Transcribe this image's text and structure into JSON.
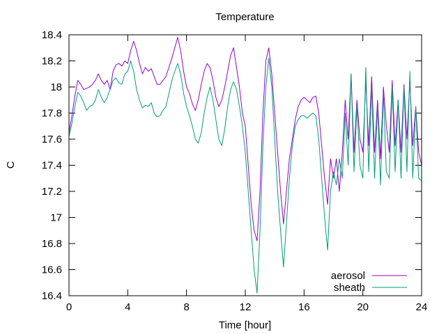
{
  "chart_data": {
    "type": "line",
    "title": "Temperature",
    "xlabel": "Time [hour]",
    "ylabel": "C",
    "xlim": [
      0,
      24
    ],
    "ylim": [
      16.4,
      18.4
    ],
    "xticks": [
      0,
      4,
      8,
      12,
      16,
      20,
      24
    ],
    "yticks": [
      16.4,
      16.6,
      16.8,
      17,
      17.2,
      17.4,
      17.6,
      17.8,
      18,
      18.2,
      18.4
    ],
    "xtick_labels": [
      "0",
      "4",
      "8",
      "12",
      "16",
      "20",
      "24"
    ],
    "ytick_labels": [
      "16.4",
      "16.6",
      "16.8",
      "17",
      "17.2",
      "17.4",
      "17.6",
      "17.8",
      "18",
      "18.2",
      "18.4"
    ],
    "grid": false,
    "legend_position": "bottom-right",
    "series": [
      {
        "name": "aerosol",
        "color": "#9400d3",
        "x": [
          0,
          0.2,
          0.4,
          0.6,
          0.8,
          1.0,
          1.2,
          1.4,
          1.6,
          1.8,
          2.0,
          2.2,
          2.4,
          2.6,
          2.8,
          3.0,
          3.2,
          3.4,
          3.6,
          3.8,
          4.0,
          4.2,
          4.4,
          4.6,
          4.8,
          5.0,
          5.2,
          5.4,
          5.6,
          5.8,
          6.0,
          6.2,
          6.4,
          6.6,
          6.8,
          7.0,
          7.2,
          7.4,
          7.6,
          7.8,
          8.0,
          8.2,
          8.4,
          8.6,
          8.8,
          9.0,
          9.2,
          9.4,
          9.6,
          9.8,
          10.0,
          10.2,
          10.4,
          10.6,
          10.8,
          11.0,
          11.2,
          11.4,
          11.6,
          11.8,
          12.0,
          12.2,
          12.4,
          12.6,
          12.8,
          13.0,
          13.2,
          13.4,
          13.6,
          13.8,
          14.0,
          14.2,
          14.4,
          14.6,
          14.8,
          15.0,
          15.2,
          15.4,
          15.6,
          15.8,
          16.0,
          16.2,
          16.4,
          16.6,
          16.8,
          17.0,
          17.2,
          17.4,
          17.6,
          17.8,
          18.0,
          18.2,
          18.4,
          18.6,
          18.8,
          19.0,
          19.2,
          19.4,
          19.6,
          19.8,
          20.0,
          20.2,
          20.4,
          20.6,
          20.8,
          21.0,
          21.2,
          21.4,
          21.6,
          21.8,
          22.0,
          22.2,
          22.4,
          22.6,
          22.8,
          23.0,
          23.2,
          23.4,
          23.6,
          23.8,
          24.0
        ],
        "values": [
          17.65,
          17.78,
          17.93,
          18.05,
          18.02,
          17.98,
          17.99,
          18.0,
          18.02,
          18.05,
          18.1,
          18.05,
          18.02,
          18.05,
          17.98,
          18.12,
          18.17,
          18.18,
          18.16,
          18.2,
          18.18,
          18.28,
          18.35,
          18.28,
          18.18,
          18.1,
          18.15,
          18.12,
          18.14,
          18.08,
          18.02,
          18.02,
          18.05,
          18.08,
          18.15,
          18.22,
          18.3,
          18.38,
          18.28,
          18.12,
          18.0,
          17.95,
          17.87,
          17.82,
          17.9,
          18.02,
          18.12,
          18.18,
          18.15,
          18.05,
          17.92,
          17.85,
          17.9,
          18.0,
          18.12,
          18.24,
          18.3,
          18.15,
          18.0,
          17.8,
          17.7,
          17.4,
          17.1,
          16.9,
          16.82,
          17.2,
          17.8,
          18.2,
          18.3,
          18.1,
          17.8,
          17.5,
          17.2,
          16.95,
          17.2,
          17.45,
          17.6,
          17.75,
          17.85,
          17.9,
          17.92,
          17.9,
          17.88,
          17.92,
          17.93,
          17.8,
          17.55,
          17.3,
          17.1,
          17.45,
          17.3,
          17.45,
          17.2,
          17.5,
          17.9,
          17.6,
          18.1,
          17.5,
          17.9,
          17.6,
          17.5,
          18.05,
          17.55,
          18.08,
          17.5,
          17.9,
          17.45,
          18.0,
          17.7,
          17.5,
          18.05,
          17.55,
          17.9,
          17.5,
          18.02,
          17.6,
          18.05,
          17.55,
          17.85,
          17.5,
          17.4
        ]
      },
      {
        "name": "sheath",
        "color": "#009e73",
        "x": [
          0,
          0.2,
          0.4,
          0.6,
          0.8,
          1.0,
          1.2,
          1.4,
          1.6,
          1.8,
          2.0,
          2.2,
          2.4,
          2.6,
          2.8,
          3.0,
          3.2,
          3.4,
          3.6,
          3.8,
          4.0,
          4.2,
          4.4,
          4.6,
          4.8,
          5.0,
          5.2,
          5.4,
          5.6,
          5.8,
          6.0,
          6.2,
          6.4,
          6.6,
          6.8,
          7.0,
          7.2,
          7.4,
          7.6,
          7.8,
          8.0,
          8.2,
          8.4,
          8.6,
          8.8,
          9.0,
          9.2,
          9.4,
          9.6,
          9.8,
          10.0,
          10.2,
          10.4,
          10.6,
          10.8,
          11.0,
          11.2,
          11.4,
          11.6,
          11.8,
          12.0,
          12.2,
          12.4,
          12.6,
          12.8,
          13.0,
          13.2,
          13.4,
          13.6,
          13.8,
          14.0,
          14.2,
          14.4,
          14.6,
          14.8,
          15.0,
          15.2,
          15.4,
          15.6,
          15.8,
          16.0,
          16.2,
          16.4,
          16.6,
          16.8,
          17.0,
          17.2,
          17.4,
          17.6,
          17.8,
          18.0,
          18.2,
          18.4,
          18.6,
          18.8,
          19.0,
          19.2,
          19.4,
          19.6,
          19.8,
          20.0,
          20.2,
          20.4,
          20.6,
          20.8,
          21.0,
          21.2,
          21.4,
          21.6,
          21.8,
          22.0,
          22.2,
          22.4,
          22.6,
          22.8,
          23.0,
          23.2,
          23.4,
          23.6,
          23.8,
          24.0
        ],
        "values": [
          17.62,
          17.72,
          17.85,
          17.96,
          17.93,
          17.88,
          17.82,
          17.85,
          17.86,
          17.9,
          17.98,
          17.92,
          17.88,
          17.92,
          17.98,
          18.05,
          18.07,
          18.03,
          18.02,
          18.1,
          18.12,
          18.2,
          18.12,
          17.98,
          17.9,
          17.84,
          17.86,
          17.85,
          17.88,
          17.8,
          17.77,
          17.78,
          17.82,
          17.85,
          17.95,
          18.05,
          18.12,
          18.18,
          18.1,
          17.95,
          17.85,
          17.78,
          17.7,
          17.6,
          17.57,
          17.65,
          17.8,
          17.92,
          18.0,
          17.9,
          17.75,
          17.6,
          17.55,
          17.68,
          17.85,
          17.98,
          18.04,
          17.98,
          17.85,
          17.7,
          17.5,
          17.2,
          16.9,
          16.6,
          16.42,
          16.9,
          17.55,
          18.0,
          18.22,
          18.0,
          17.6,
          17.2,
          16.9,
          16.62,
          16.95,
          17.3,
          17.55,
          17.7,
          17.75,
          17.78,
          17.78,
          17.76,
          17.78,
          17.8,
          17.78,
          17.6,
          17.3,
          17.0,
          16.75,
          17.2,
          17.35,
          17.25,
          17.45,
          17.3,
          17.8,
          17.4,
          18.1,
          17.35,
          17.85,
          17.4,
          17.3,
          18.15,
          17.35,
          18.0,
          17.3,
          17.85,
          17.25,
          17.95,
          17.35,
          17.3,
          18.0,
          17.35,
          17.9,
          17.3,
          18.0,
          17.35,
          18.12,
          17.3,
          17.85,
          17.3,
          17.28
        ]
      }
    ]
  }
}
